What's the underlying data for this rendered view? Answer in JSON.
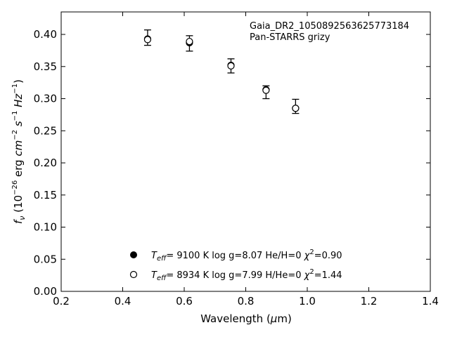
{
  "chart_data": {
    "type": "scatter",
    "title": "",
    "xlabel": "Wavelength (μm)",
    "ylabel": "fν (10⁻²⁶ erg cm⁻² s⁻¹ Hz⁻¹)",
    "xlim": [
      0.2,
      1.4
    ],
    "ylim": [
      0.0,
      0.435
    ],
    "xticks": [
      "0.2",
      "0.4",
      "0.6",
      "0.8",
      "1.0",
      "1.2",
      "1.4"
    ],
    "yticks": [
      "0.00",
      "0.05",
      "0.10",
      "0.15",
      "0.20",
      "0.25",
      "0.30",
      "0.35",
      "0.40"
    ],
    "grid": false,
    "annotations": [
      "Gaia_DR2_1050892563625773184",
      "Pan-STARRS grizy"
    ],
    "observed": {
      "x": [
        0.481,
        0.617,
        0.752,
        0.866,
        0.962
      ],
      "y": [
        0.395,
        0.386,
        0.351,
        0.31,
        0.288
      ],
      "yerr": [
        0.012,
        0.012,
        0.011,
        0.01,
        0.011
      ]
    },
    "series": [
      {
        "marker": "filled-circle",
        "legend": "T_eff= 9100 K  log g=8.07  He/H=0  χ²=0.90",
        "x": [
          0.481,
          0.617,
          0.752,
          0.866,
          0.962
        ],
        "y": [
          0.393,
          0.387,
          0.352,
          0.314,
          0.285
        ]
      },
      {
        "marker": "open-circle",
        "legend": "T_eff= 8934 K  log g=7.99  H/He=0  χ²=1.44",
        "x": [
          0.481,
          0.617,
          0.752,
          0.866,
          0.962
        ],
        "y": [
          0.392,
          0.389,
          0.351,
          0.313,
          0.285
        ]
      }
    ],
    "legend_placement": "lower-center"
  }
}
